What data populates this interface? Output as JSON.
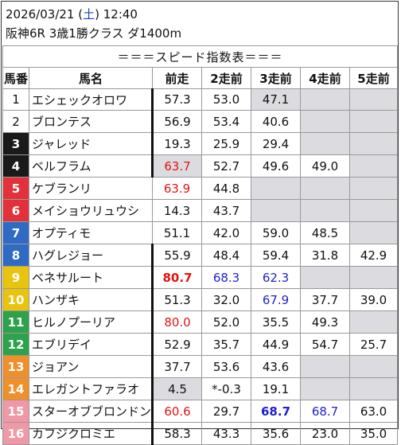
{
  "header": {
    "date": "2026/03/21",
    "dow_open": " (",
    "dow": "土",
    "dow_close": ") ",
    "time": "12:40",
    "race": "阪神6R 3歳1勝クラス ダ1400m"
  },
  "table": {
    "caption": "＝＝＝スピード指数表＝＝＝",
    "columns": [
      "馬番",
      "馬名",
      "前走",
      "2走前",
      "3走前",
      "4走前",
      "5走前"
    ],
    "rows": [
      {
        "num": "1",
        "name": "エシェックオロワ",
        "vals": [
          "57.3",
          "53.0",
          "47.1",
          "",
          ""
        ]
      },
      {
        "num": "2",
        "name": "ブロンテス",
        "vals": [
          "56.9",
          "53.4",
          "40.6",
          "",
          ""
        ]
      },
      {
        "num": "3",
        "name": "ジャレッド",
        "vals": [
          "19.3",
          "25.9",
          "29.4",
          "",
          ""
        ]
      },
      {
        "num": "4",
        "name": "ベルフラム",
        "vals": [
          "63.7",
          "52.7",
          "49.6",
          "49.0",
          ""
        ]
      },
      {
        "num": "5",
        "name": "ケブランリ",
        "vals": [
          "63.9",
          "44.8",
          "",
          "",
          ""
        ]
      },
      {
        "num": "6",
        "name": "メイショウリュウシ",
        "vals": [
          "14.3",
          "43.7",
          "",
          "",
          ""
        ]
      },
      {
        "num": "7",
        "name": "オプティモ",
        "vals": [
          "51.1",
          "42.0",
          "59.0",
          "48.5",
          ""
        ]
      },
      {
        "num": "8",
        "name": "ハグレジョー",
        "vals": [
          "55.9",
          "48.4",
          "59.4",
          "31.8",
          "42.9"
        ]
      },
      {
        "num": "9",
        "name": "ベネサルート",
        "vals": [
          "80.7",
          "68.3",
          "62.3",
          "",
          ""
        ]
      },
      {
        "num": "10",
        "name": "ハンザキ",
        "vals": [
          "51.3",
          "32.0",
          "67.9",
          "37.7",
          "39.0"
        ]
      },
      {
        "num": "11",
        "name": "ヒルノプーリア",
        "vals": [
          "80.0",
          "52.0",
          "35.5",
          "49.3",
          ""
        ]
      },
      {
        "num": "12",
        "name": "エブリデイ",
        "vals": [
          "52.9",
          "35.7",
          "44.9",
          "54.7",
          "25.7"
        ]
      },
      {
        "num": "13",
        "name": "ジョアン",
        "vals": [
          "37.7",
          "53.6",
          "43.6",
          "",
          ""
        ]
      },
      {
        "num": "14",
        "name": "エレガントファラオ",
        "vals": [
          "4.5",
          "*-0.3",
          "19.1",
          "",
          ""
        ]
      },
      {
        "num": "15",
        "name": "スターオブブロンドン",
        "vals": [
          "60.6",
          "29.7",
          "68.7",
          "68.7",
          "63.0"
        ]
      },
      {
        "num": "16",
        "name": "カフジクロミエ",
        "vals": [
          "58.3",
          "43.3",
          "35.6",
          "23.0",
          "35.0"
        ]
      }
    ]
  },
  "colors": {
    "frame_gates": [
      "#ffffff",
      "#1a1a1a",
      "#e2313a",
      "#2f6bc4",
      "#e9c40f",
      "#2ca24a",
      "#f0902b",
      "#f098a6"
    ],
    "red_value": "#e31313",
    "blue_value": "#2020d0",
    "gray_cell": "#dcdce0"
  }
}
